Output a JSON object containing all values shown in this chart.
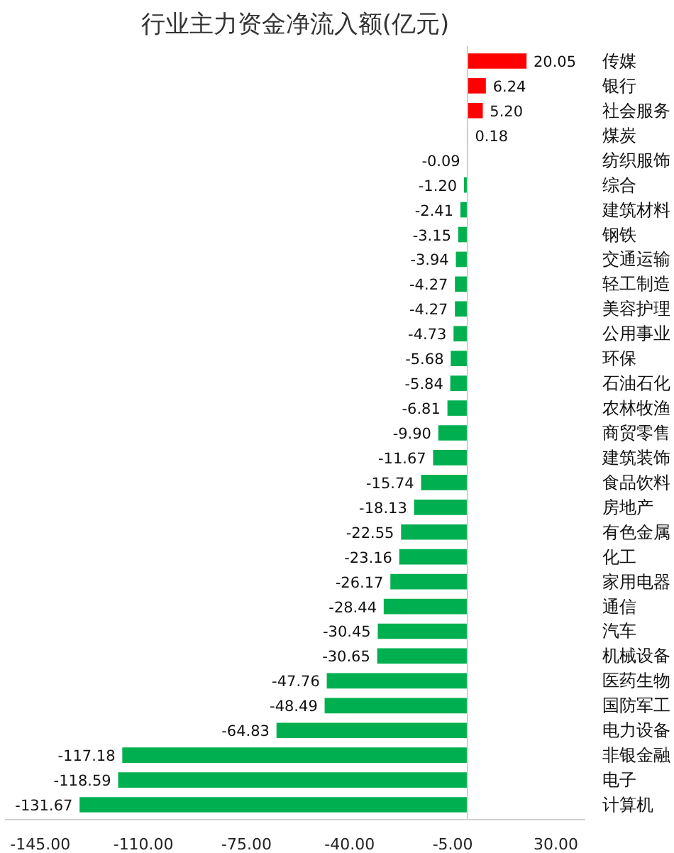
{
  "chart_data": {
    "type": "bar",
    "orientation": "horizontal",
    "title": "行业主力资金净流入额(亿元)",
    "categories": [
      "传媒",
      "银行",
      "社会服务",
      "煤炭",
      "纺织服饰",
      "综合",
      "建筑材料",
      "钢铁",
      "交通运输",
      "轻工制造",
      "美容护理",
      "公用事业",
      "环保",
      "石油石化",
      "农林牧渔",
      "商贸零售",
      "建筑装饰",
      "食品饮料",
      "房地产",
      "有色金属",
      "化工",
      "家用电器",
      "通信",
      "汽车",
      "机械设备",
      "医药生物",
      "国防军工",
      "电力设备",
      "非银金融",
      "电子",
      "计算机"
    ],
    "values": [
      20.05,
      6.24,
      5.2,
      0.18,
      -0.09,
      -1.2,
      -2.41,
      -3.15,
      -3.94,
      -4.27,
      -4.27,
      -4.73,
      -5.68,
      -5.84,
      -6.81,
      -9.9,
      -11.67,
      -15.74,
      -18.13,
      -22.55,
      -23.16,
      -26.17,
      -28.44,
      -30.45,
      -30.65,
      -47.76,
      -48.49,
      -64.83,
      -117.18,
      -118.59,
      -131.67
    ],
    "value_labels": [
      "20.05",
      "6.24",
      "5.20",
      "0.18",
      "-0.09",
      "-1.20",
      "-2.41",
      "-3.15",
      "-3.94",
      "-4.27",
      "-4.27",
      "-4.73",
      "-5.68",
      "-5.84",
      "-6.81",
      "-9.90",
      "-11.67",
      "-15.74",
      "-18.13",
      "-22.55",
      "-23.16",
      "-26.17",
      "-28.44",
      "-30.45",
      "-30.65",
      "-47.76",
      "-48.49",
      "-64.83",
      "-117.18",
      "-118.59",
      "-131.67"
    ],
    "colors": [
      "#ff0000",
      "#ff0000",
      "#ff0000",
      "#ff0000",
      "#00b050",
      "#00b050",
      "#00b050",
      "#00b050",
      "#00b050",
      "#00b050",
      "#00b050",
      "#00b050",
      "#00b050",
      "#00b050",
      "#00b050",
      "#00b050",
      "#00b050",
      "#00b050",
      "#00b050",
      "#00b050",
      "#00b050",
      "#00b050",
      "#00b050",
      "#00b050",
      "#00b050",
      "#00b050",
      "#00b050",
      "#00b050",
      "#00b050",
      "#00b050",
      "#00b050"
    ],
    "xlim": [
      -157,
      40
    ],
    "xticks": [
      {
        "value": -145,
        "label": "-145.00"
      },
      {
        "value": -110,
        "label": "-110.00"
      },
      {
        "value": -75,
        "label": "-75.00"
      },
      {
        "value": -40,
        "label": "-40.00"
      },
      {
        "value": -5,
        "label": "-5.00"
      },
      {
        "value": 30,
        "label": "30.00"
      }
    ],
    "grid": false,
    "legend": false
  }
}
